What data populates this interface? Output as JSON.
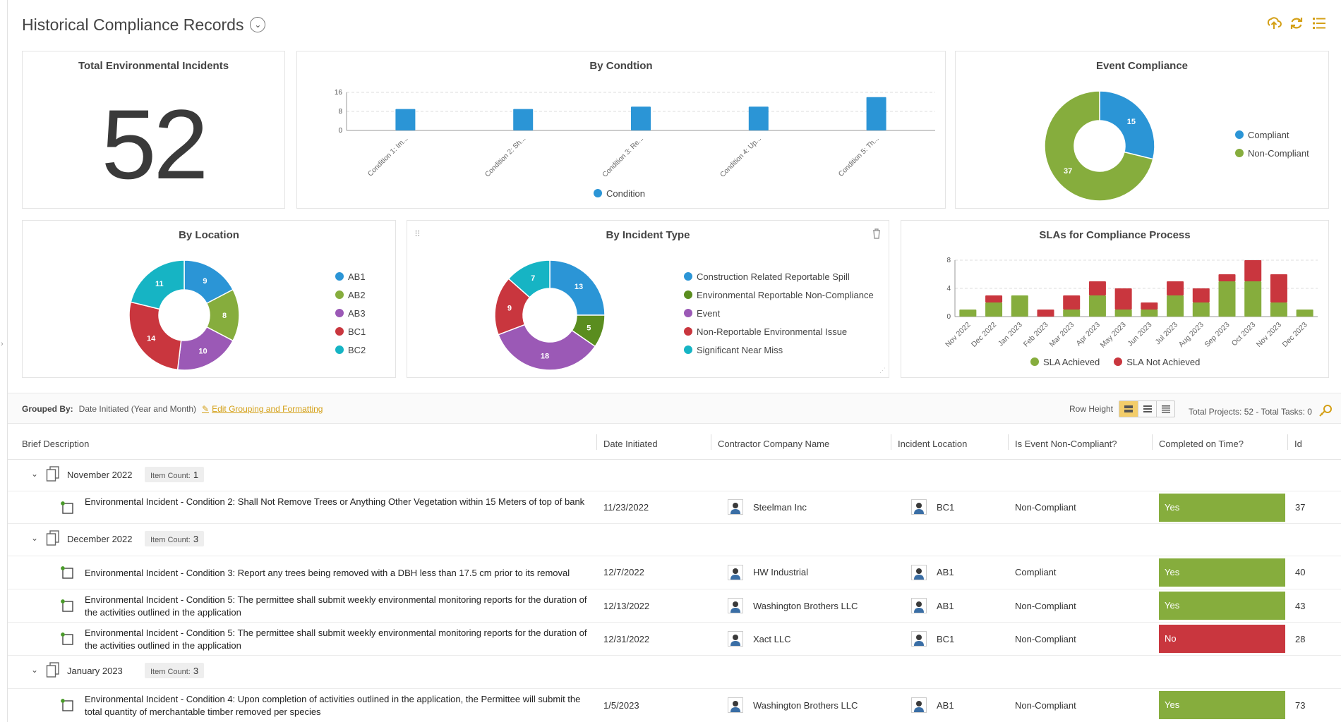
{
  "page": {
    "title": "Historical Compliance Records"
  },
  "cards": {
    "total_incidents": {
      "title": "Total Environmental Incidents",
      "value": "52"
    },
    "by_condition": {
      "title": "By Condtion",
      "legend": "Condition"
    },
    "event_compliance": {
      "title": "Event Compliance",
      "legend": [
        "Compliant",
        "Non-Compliant"
      ]
    },
    "by_location": {
      "title": "By Location",
      "legend": [
        "AB1",
        "AB2",
        "AB3",
        "BC1",
        "BC2"
      ]
    },
    "by_incident_type": {
      "title": "By Incident Type",
      "legend": [
        "Construction Related Reportable Spill",
        "Environmental Reportable Non-Compliance",
        "Event",
        "Non-Reportable Environmental Issue",
        "Significant Near Miss"
      ]
    },
    "slas": {
      "title": "SLAs for Compliance Process",
      "legend": [
        "SLA Achieved",
        "SLA Not Achieved"
      ]
    }
  },
  "chart_data": [
    {
      "type": "bar",
      "title": "By Condtion",
      "categories": [
        "Condition 1: Im...",
        "Condition 2: Sh...",
        "Condition 3: Re...",
        "Condition 4: Up...",
        "Condition 5: Th..."
      ],
      "series": [
        {
          "name": "Condition",
          "values": [
            9,
            9,
            10,
            10,
            14
          ]
        }
      ],
      "yticks": [
        0,
        8,
        16
      ],
      "ylim": [
        0,
        16
      ],
      "color": "#2b95d6",
      "legend": "bottom",
      "grid": true
    },
    {
      "type": "pie",
      "title": "Event Compliance",
      "labels": [
        "Compliant",
        "Non-Compliant"
      ],
      "values": [
        15,
        37
      ],
      "colors": [
        "#2b95d6",
        "#86ad3d"
      ],
      "donut": true,
      "legend": "right"
    },
    {
      "type": "pie",
      "title": "By Location",
      "labels": [
        "AB1",
        "AB2",
        "AB3",
        "BC1",
        "BC2"
      ],
      "values": [
        9,
        8,
        10,
        14,
        11
      ],
      "colors": [
        "#2b95d6",
        "#86ad3d",
        "#9b59b6",
        "#c9363e",
        "#16b4c4"
      ],
      "donut": true,
      "legend": "right"
    },
    {
      "type": "pie",
      "title": "By Incident Type",
      "labels": [
        "Construction Related Reportable Spill",
        "Environmental Reportable Non-Compliance",
        "Event",
        "Non-Reportable Environmental Issue",
        "Significant Near Miss"
      ],
      "values": [
        13,
        5,
        18,
        9,
        7
      ],
      "colors": [
        "#2b95d6",
        "#5a8d1f",
        "#9b59b6",
        "#c9363e",
        "#16b4c4"
      ],
      "donut": true,
      "legend": "right"
    },
    {
      "type": "bar",
      "stacked": true,
      "title": "SLAs for Compliance Process",
      "categories": [
        "Nov 2022",
        "Dec 2022",
        "Jan 2023",
        "Feb 2023",
        "Mar 2023",
        "Apr 2023",
        "May 2023",
        "Jun 2023",
        "Jul 2023",
        "Aug 2023",
        "Sep 2023",
        "Oct 2023",
        "Nov 2023",
        "Dec 2023"
      ],
      "series": [
        {
          "name": "SLA Achieved",
          "values": [
            1,
            2,
            3,
            0,
            1,
            3,
            1,
            1,
            3,
            2,
            5,
            5,
            2,
            1
          ],
          "color": "#86ad3d"
        },
        {
          "name": "SLA Not Achieved",
          "values": [
            0,
            1,
            0,
            1,
            2,
            2,
            3,
            1,
            2,
            2,
            1,
            3,
            4,
            0
          ],
          "color": "#c9363e"
        }
      ],
      "yticks": [
        0,
        4,
        8
      ],
      "ylim": [
        0,
        8
      ],
      "legend": "bottom",
      "grid": true
    }
  ],
  "toolbar": {
    "grouped_by_label": "Grouped By:",
    "grouped_by_value": "Date Initiated (Year and Month)",
    "edit_link": "Edit Grouping and Formatting",
    "row_height_label": "Row Height",
    "totals": "Total Projects: 52 - Total Tasks: 0"
  },
  "columns": [
    "Brief Description",
    "Date Initiated",
    "Contractor Company Name",
    "Incident Location",
    "Is Event Non-Compliant?",
    "Completed on Time?",
    "Id"
  ],
  "groups": [
    {
      "name": "November 2022",
      "count_label": "Item Count:",
      "count": "1",
      "rows": [
        {
          "desc": "Environmental Incident - Condition 2: Shall Not Remove Trees or Anything Other Vegetation within 15 Meters of top of bank",
          "date": "11/23/2022",
          "company": "Steelman Inc",
          "location": "BC1",
          "noncompliant": "Non-Compliant",
          "ontime": "Yes",
          "id": "37"
        }
      ]
    },
    {
      "name": "December 2022",
      "count_label": "Item Count:",
      "count": "3",
      "rows": [
        {
          "desc": "Environmental Incident - Condition 3: Report any trees being removed with a DBH less than 17.5 cm prior to its removal",
          "date": "12/7/2022",
          "company": "HW Industrial",
          "location": "AB1",
          "noncompliant": "Compliant",
          "ontime": "Yes",
          "id": "40"
        },
        {
          "desc": "Environmental Incident - Condition 5: The permittee shall submit weekly environmental monitoring reports for the duration of the activities outlined in the application",
          "date": "12/13/2022",
          "company": "Washington Brothers LLC",
          "location": "AB1",
          "noncompliant": "Non-Compliant",
          "ontime": "Yes",
          "id": "43"
        },
        {
          "desc": "Environmental Incident - Condition 5: The permittee shall submit weekly environmental monitoring reports for the duration of the activities outlined in the application",
          "date": "12/31/2022",
          "company": "Xact LLC",
          "location": "BC1",
          "noncompliant": "Non-Compliant",
          "ontime": "No",
          "id": "28"
        }
      ]
    },
    {
      "name": "January 2023",
      "count_label": "Item Count:",
      "count": "3",
      "rows": [
        {
          "desc": "Environmental Incident - Condition 4: Upon completion of activities outlined in the application, the Permittee will submit the total quantity of merchantable timber removed per species",
          "date": "1/5/2023",
          "company": "Washington Brothers LLC",
          "location": "AB1",
          "noncompliant": "Non-Compliant",
          "ontime": "Yes",
          "id": "73"
        }
      ]
    }
  ],
  "status_colors": {
    "Yes": "#86ad3d",
    "No": "#c9363e"
  },
  "accent": "#d4a017"
}
